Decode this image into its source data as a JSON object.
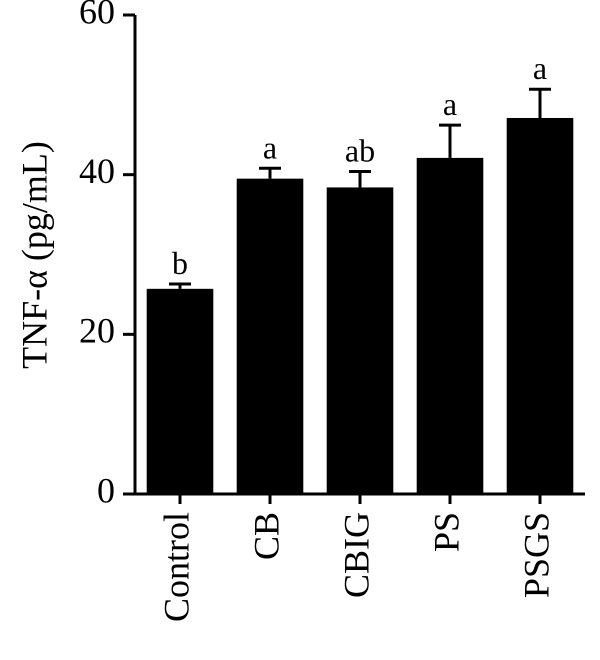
{
  "chart_data": {
    "type": "bar",
    "y_label": "TNF-α (pg/mL)",
    "categories": [
      "Control",
      "CB",
      "CBIG",
      "PS",
      "PSGS"
    ],
    "values": [
      25.7,
      39.5,
      38.4,
      42.1,
      47.1
    ],
    "errors": [
      0.6,
      1.3,
      2.0,
      4.1,
      3.6
    ],
    "annotations": [
      "b",
      "a",
      "ab",
      "a",
      "a"
    ],
    "color": "#000000",
    "ylim": [
      0,
      60
    ],
    "yticks": [
      0,
      20,
      40,
      60
    ],
    "grid": false
  }
}
